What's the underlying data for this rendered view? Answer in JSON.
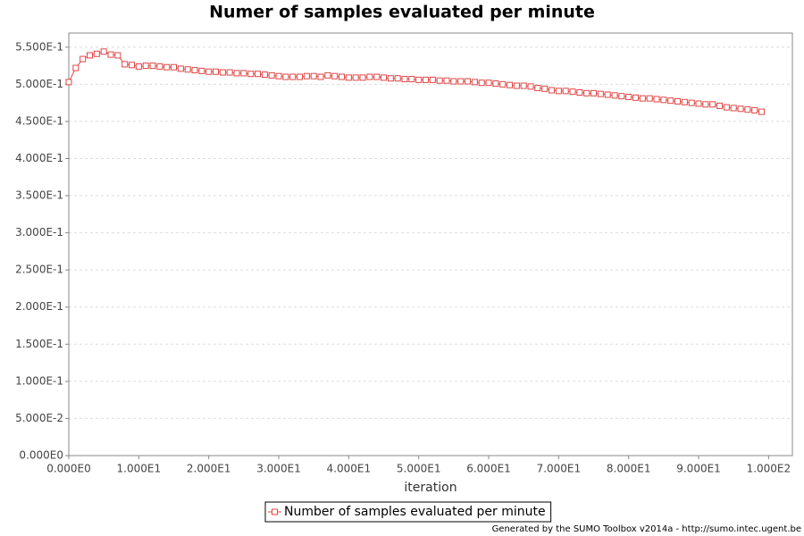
{
  "chart_data": {
    "type": "line",
    "title": "Numer of samples evaluated per minute",
    "xlabel": "iteration",
    "footer": "Generated by the SUMO Toolbox v2014a - http://sumo.intec.ugent.be",
    "x": [
      0,
      1,
      2,
      3,
      4,
      5,
      6,
      7,
      8,
      9,
      10,
      11,
      12,
      13,
      14,
      15,
      16,
      17,
      18,
      19,
      20,
      21,
      22,
      23,
      24,
      25,
      26,
      27,
      28,
      29,
      30,
      31,
      32,
      33,
      34,
      35,
      36,
      37,
      38,
      39,
      40,
      41,
      42,
      43,
      44,
      45,
      46,
      47,
      48,
      49,
      50,
      51,
      52,
      53,
      54,
      55,
      56,
      57,
      58,
      59,
      60,
      61,
      62,
      63,
      64,
      65,
      66,
      67,
      68,
      69,
      70,
      71,
      72,
      73,
      74,
      75,
      76,
      77,
      78,
      79,
      80,
      81,
      82,
      83,
      84,
      85,
      86,
      87,
      88,
      89,
      90,
      91,
      92,
      93,
      94,
      95,
      96,
      97,
      98,
      99
    ],
    "series": [
      {
        "name": "Number of samples evaluated per minute",
        "color": "#e04646",
        "values": [
          0.503,
          0.522,
          0.534,
          0.539,
          0.541,
          0.544,
          0.54,
          0.539,
          0.527,
          0.526,
          0.524,
          0.525,
          0.525,
          0.524,
          0.523,
          0.523,
          0.521,
          0.52,
          0.519,
          0.518,
          0.517,
          0.517,
          0.516,
          0.516,
          0.515,
          0.515,
          0.514,
          0.514,
          0.513,
          0.512,
          0.511,
          0.51,
          0.51,
          0.51,
          0.511,
          0.511,
          0.51,
          0.512,
          0.511,
          0.51,
          0.509,
          0.509,
          0.509,
          0.51,
          0.51,
          0.509,
          0.508,
          0.508,
          0.507,
          0.507,
          0.506,
          0.506,
          0.506,
          0.505,
          0.505,
          0.504,
          0.504,
          0.504,
          0.503,
          0.502,
          0.502,
          0.501,
          0.5,
          0.499,
          0.498,
          0.498,
          0.497,
          0.495,
          0.494,
          0.492,
          0.491,
          0.491,
          0.49,
          0.489,
          0.488,
          0.488,
          0.487,
          0.486,
          0.485,
          0.484,
          0.483,
          0.482,
          0.481,
          0.481,
          0.48,
          0.479,
          0.478,
          0.477,
          0.476,
          0.475,
          0.474,
          0.473,
          0.473,
          0.471,
          0.469,
          0.468,
          0.467,
          0.466,
          0.465,
          0.463
        ]
      }
    ],
    "xlim": [
      0,
      103.4
    ],
    "ylim": [
      0,
      0.569
    ],
    "xticks": [
      {
        "value": 0,
        "label": "0.000E0"
      },
      {
        "value": 10,
        "label": "1.000E1"
      },
      {
        "value": 20,
        "label": "2.000E1"
      },
      {
        "value": 30,
        "label": "3.000E1"
      },
      {
        "value": 40,
        "label": "4.000E1"
      },
      {
        "value": 50,
        "label": "5.000E1"
      },
      {
        "value": 60,
        "label": "6.000E1"
      },
      {
        "value": 70,
        "label": "7.000E1"
      },
      {
        "value": 80,
        "label": "8.000E1"
      },
      {
        "value": 90,
        "label": "9.000E1"
      },
      {
        "value": 100,
        "label": "1.000E2"
      }
    ],
    "yticks": [
      {
        "value": 0,
        "label": "0.000E0"
      },
      {
        "value": 0.05,
        "label": "5.000E-2"
      },
      {
        "value": 0.1,
        "label": "1.000E-1"
      },
      {
        "value": 0.15,
        "label": "1.500E-1"
      },
      {
        "value": 0.2,
        "label": "2.000E-1"
      },
      {
        "value": 0.25,
        "label": "2.500E-1"
      },
      {
        "value": 0.3,
        "label": "3.000E-1"
      },
      {
        "value": 0.35,
        "label": "3.500E-1"
      },
      {
        "value": 0.4,
        "label": "4.000E-1"
      },
      {
        "value": 0.45,
        "label": "4.500E-1"
      },
      {
        "value": 0.5,
        "label": "5.000E-1"
      },
      {
        "value": 0.55,
        "label": "5.500E-1"
      }
    ],
    "grid": true
  }
}
